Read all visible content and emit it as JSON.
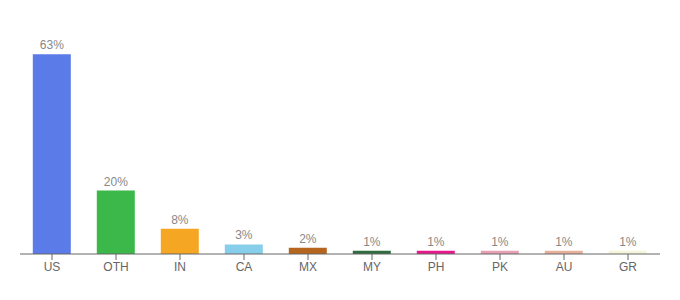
{
  "chart_data": {
    "type": "bar",
    "categories": [
      "US",
      "OTH",
      "IN",
      "CA",
      "MX",
      "MY",
      "PH",
      "PK",
      "AU",
      "GR"
    ],
    "values": [
      63,
      20,
      8,
      3,
      2,
      1,
      1,
      1,
      1,
      1
    ],
    "value_labels": [
      "63%",
      "20%",
      "8%",
      "3%",
      "2%",
      "1%",
      "1%",
      "1%",
      "1%",
      "1%"
    ],
    "data_labels": true,
    "colors": [
      "#5b7be8",
      "#3cb84a",
      "#f5a623",
      "#87ceeb",
      "#b5651d",
      "#2e6b3e",
      "#e8188c",
      "#e8a0b4",
      "#e8b09a",
      "#f5f5dc"
    ],
    "ylim": [
      0,
      70
    ],
    "tick_labels": "x",
    "grid": false
  }
}
